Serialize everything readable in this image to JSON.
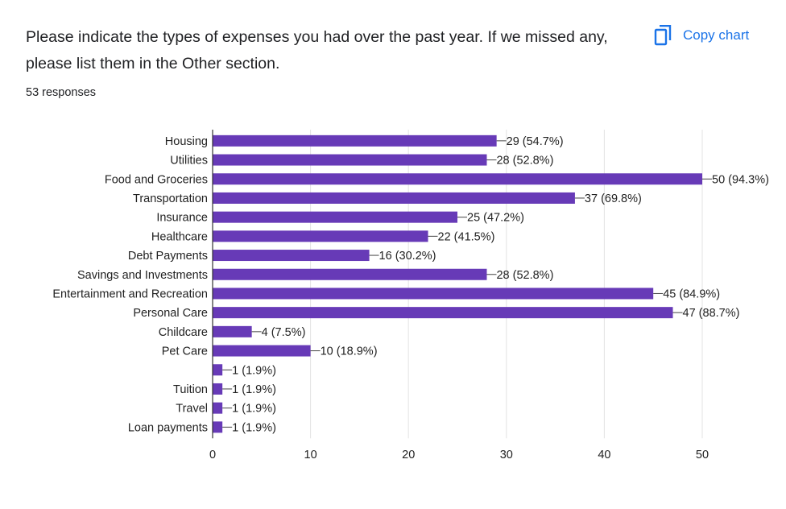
{
  "header": {
    "question": "Please indicate the types of expenses you had over the past year. If we missed any, please list them in the Other section.",
    "responses": "53 responses",
    "copy_label": "Copy chart",
    "copy_icon": "copy-icon"
  },
  "colors": {
    "bar": "#673ab7",
    "accent": "#1a73e8"
  },
  "chart_data": {
    "type": "bar",
    "orientation": "horizontal",
    "categories": [
      "Housing",
      "Utilities",
      "Food and Groceries",
      "Transportation",
      "Insurance",
      "Healthcare",
      "Debt Payments",
      "Savings and Investments",
      "Entertainment and Recreation",
      "Personal Care",
      "Childcare",
      "Pet Care",
      "",
      "Tuition",
      "Travel",
      "Loan payments"
    ],
    "values": [
      29,
      28,
      50,
      37,
      25,
      22,
      16,
      28,
      45,
      47,
      4,
      10,
      1,
      1,
      1,
      1
    ],
    "data_labels": [
      "29 (54.7%)",
      "28 (52.8%)",
      "50 (94.3%)",
      "37 (69.8%)",
      "25 (47.2%)",
      "22 (41.5%)",
      "16 (30.2%)",
      "28 (52.8%)",
      "45 (84.9%)",
      "47 (88.7%)",
      "4 (7.5%)",
      "10 (18.9%)",
      "1 (1.9%)",
      "1 (1.9%)",
      "1 (1.9%)",
      "1 (1.9%)"
    ],
    "x_ticks": [
      0,
      10,
      20,
      30,
      40,
      50
    ],
    "xlim": [
      0,
      50
    ],
    "grid": true
  }
}
